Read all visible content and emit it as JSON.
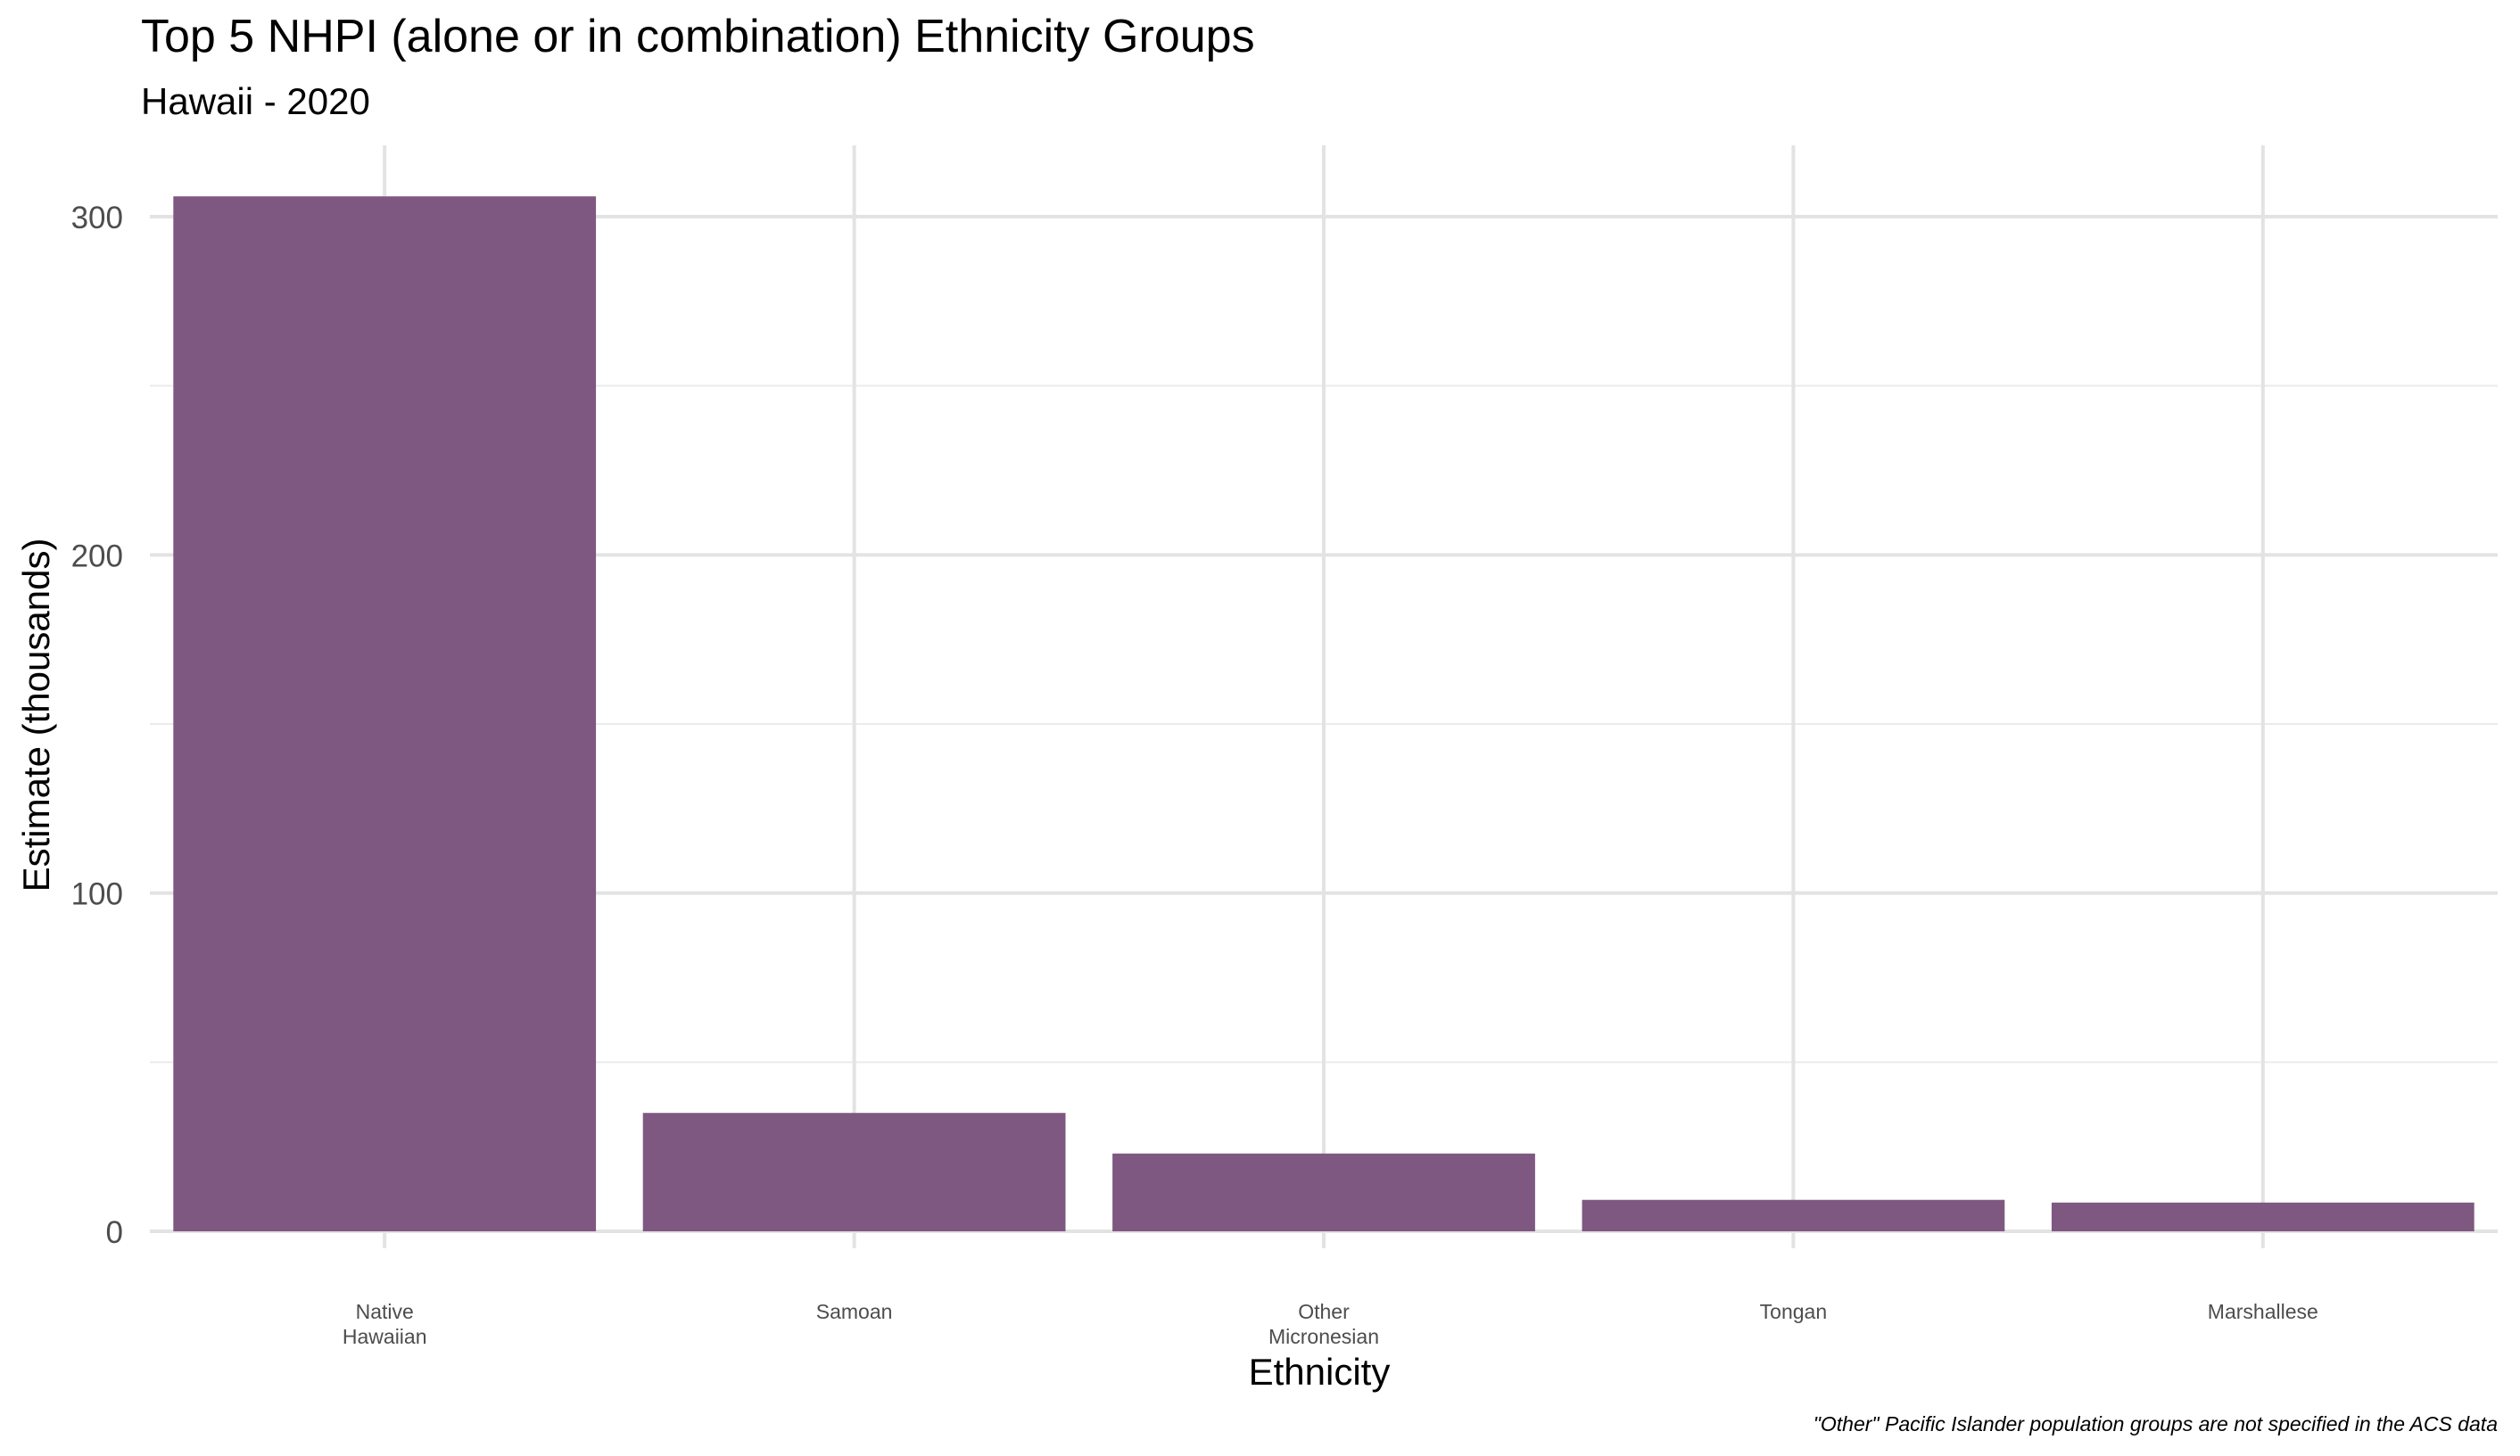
{
  "chart_data": {
    "type": "bar",
    "title": "Top 5 NHPI (alone or in combination) Ethnicity Groups",
    "subtitle": "Hawaii - 2020",
    "xlabel": "Ethnicity",
    "ylabel": "Estimate (thousands)",
    "caption": "\"Other\" Pacific Islander population groups are not specified in the ACS data",
    "categories": [
      "Native Hawaiian",
      "Samoan",
      "Other Micronesian",
      "Tongan",
      "Marshallese"
    ],
    "category_label_lines": [
      [
        "Native",
        "Hawaiian"
      ],
      [
        "Samoan"
      ],
      [
        "Other",
        "Micronesian"
      ],
      [
        "Tongan"
      ],
      [
        "Marshallese"
      ]
    ],
    "values": [
      306,
      35,
      23,
      9.3,
      8.5
    ],
    "ylim": [
      0,
      320
    ],
    "yticks": [
      0,
      100,
      200,
      300
    ],
    "ytick_labels": [
      "0",
      "100",
      "200",
      "300"
    ],
    "grid": true,
    "legend": "none",
    "bar_color": "#7E5880"
  }
}
